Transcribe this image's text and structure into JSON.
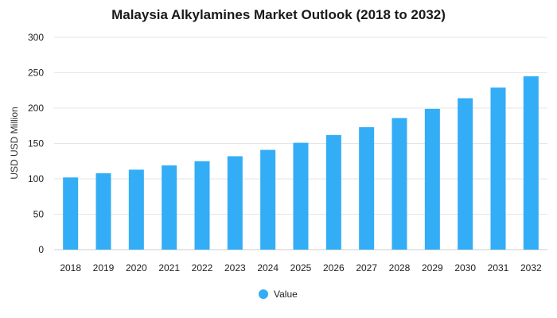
{
  "chart_data": {
    "type": "bar",
    "title": "Malaysia Alkylamines Market Outlook (2018 to 2032)",
    "xlabel": "",
    "ylabel": "USD USD Million",
    "categories": [
      "2018",
      "2019",
      "2020",
      "2021",
      "2022",
      "2023",
      "2024",
      "2025",
      "2026",
      "2027",
      "2028",
      "2029",
      "2030",
      "2031",
      "2032"
    ],
    "series": [
      {
        "name": "Value",
        "values": [
          102,
          108,
          113,
          119,
          125,
          132,
          141,
          151,
          162,
          173,
          186,
          199,
          214,
          229,
          245
        ]
      }
    ],
    "ylim": [
      0,
      300
    ],
    "yticks": [
      0,
      50,
      100,
      150,
      200,
      250,
      300
    ],
    "grid": true,
    "legend_position": "bottom-center",
    "colors": {
      "bar": "#33adf5",
      "grid": "#e6e6e6",
      "text": "#222222"
    }
  }
}
